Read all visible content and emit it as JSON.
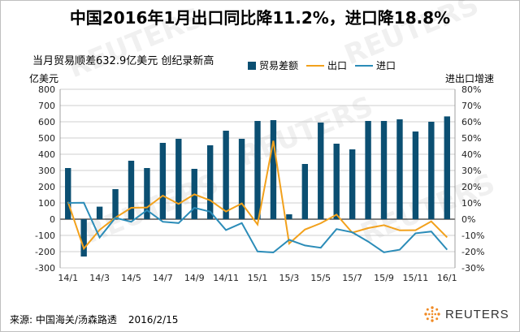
{
  "title": "中国2016年1月出口同比降11.2%，进口降18.8%",
  "subtitle": "当月贸易顺差632.9亿美元 创纪录新高",
  "footer": {
    "source": "来源: 中国海关/汤森路透",
    "date": "2016/2/15"
  },
  "brand": {
    "name": "REUTERS",
    "watermark": "REUTERS"
  },
  "colors": {
    "bar": "#0b4f72",
    "export": "#f2a11c",
    "import": "#2b8cb8",
    "grid": "#bfbfbf"
  },
  "chart_data": {
    "type": "bar",
    "categories": [
      "14/1",
      "14/2",
      "14/3",
      "14/4",
      "14/5",
      "14/6",
      "14/7",
      "14/8",
      "14/9",
      "14/10",
      "14/11",
      "14/12",
      "15/1",
      "15/2",
      "15/3",
      "15/4",
      "15/5",
      "15/6",
      "15/7",
      "15/8",
      "15/9",
      "15/10",
      "15/11",
      "15/12",
      "16/1"
    ],
    "tick_labels": [
      "14/1",
      "14/3",
      "14/5",
      "14/7",
      "14/9",
      "14/11",
      "15/1",
      "15/3",
      "15/5",
      "15/7",
      "15/9",
      "15/11",
      "16/1"
    ],
    "y_left": {
      "label": "亿美元",
      "ylim": [
        -300,
        800
      ],
      "ticks": [
        800,
        700,
        600,
        500,
        400,
        300,
        200,
        100,
        0,
        -100,
        -200,
        -300
      ]
    },
    "y_right": {
      "label": "进出口增速",
      "ylim": [
        -30,
        80
      ],
      "ticks": [
        "80%",
        "70%",
        "60%",
        "50%",
        "40%",
        "30%",
        "20%",
        "10%",
        "0%",
        "-10%",
        "-20%",
        "-30%"
      ]
    },
    "series": [
      {
        "name": "贸易差额",
        "type": "bar",
        "axis": "left",
        "values": [
          315,
          -230,
          77,
          185,
          360,
          315,
          470,
          495,
          310,
          455,
          545,
          495,
          605,
          610,
          30,
          340,
          595,
          465,
          430,
          605,
          605,
          615,
          540,
          600,
          633
        ]
      },
      {
        "name": "出口",
        "type": "line",
        "axis": "right",
        "values": [
          10.6,
          -18.1,
          -6.6,
          0.9,
          7.0,
          7.2,
          14.5,
          9.4,
          15.3,
          11.6,
          4.7,
          9.7,
          -3.3,
          48.3,
          -15.0,
          -6.4,
          -2.5,
          2.8,
          -8.3,
          -5.5,
          -3.7,
          -6.9,
          -6.8,
          -1.4,
          -11.2
        ]
      },
      {
        "name": "进口",
        "type": "line",
        "axis": "right",
        "values": [
          10.0,
          10.1,
          -11.3,
          0.8,
          -1.6,
          5.5,
          -1.6,
          -2.4,
          7.0,
          4.6,
          -6.7,
          -2.4,
          -19.9,
          -20.5,
          -12.7,
          -16.2,
          -17.6,
          -6.1,
          -8.1,
          -13.8,
          -20.4,
          -18.8,
          -8.7,
          -7.6,
          -18.8
        ]
      }
    ],
    "grid": true,
    "legend_position": "top-center"
  }
}
